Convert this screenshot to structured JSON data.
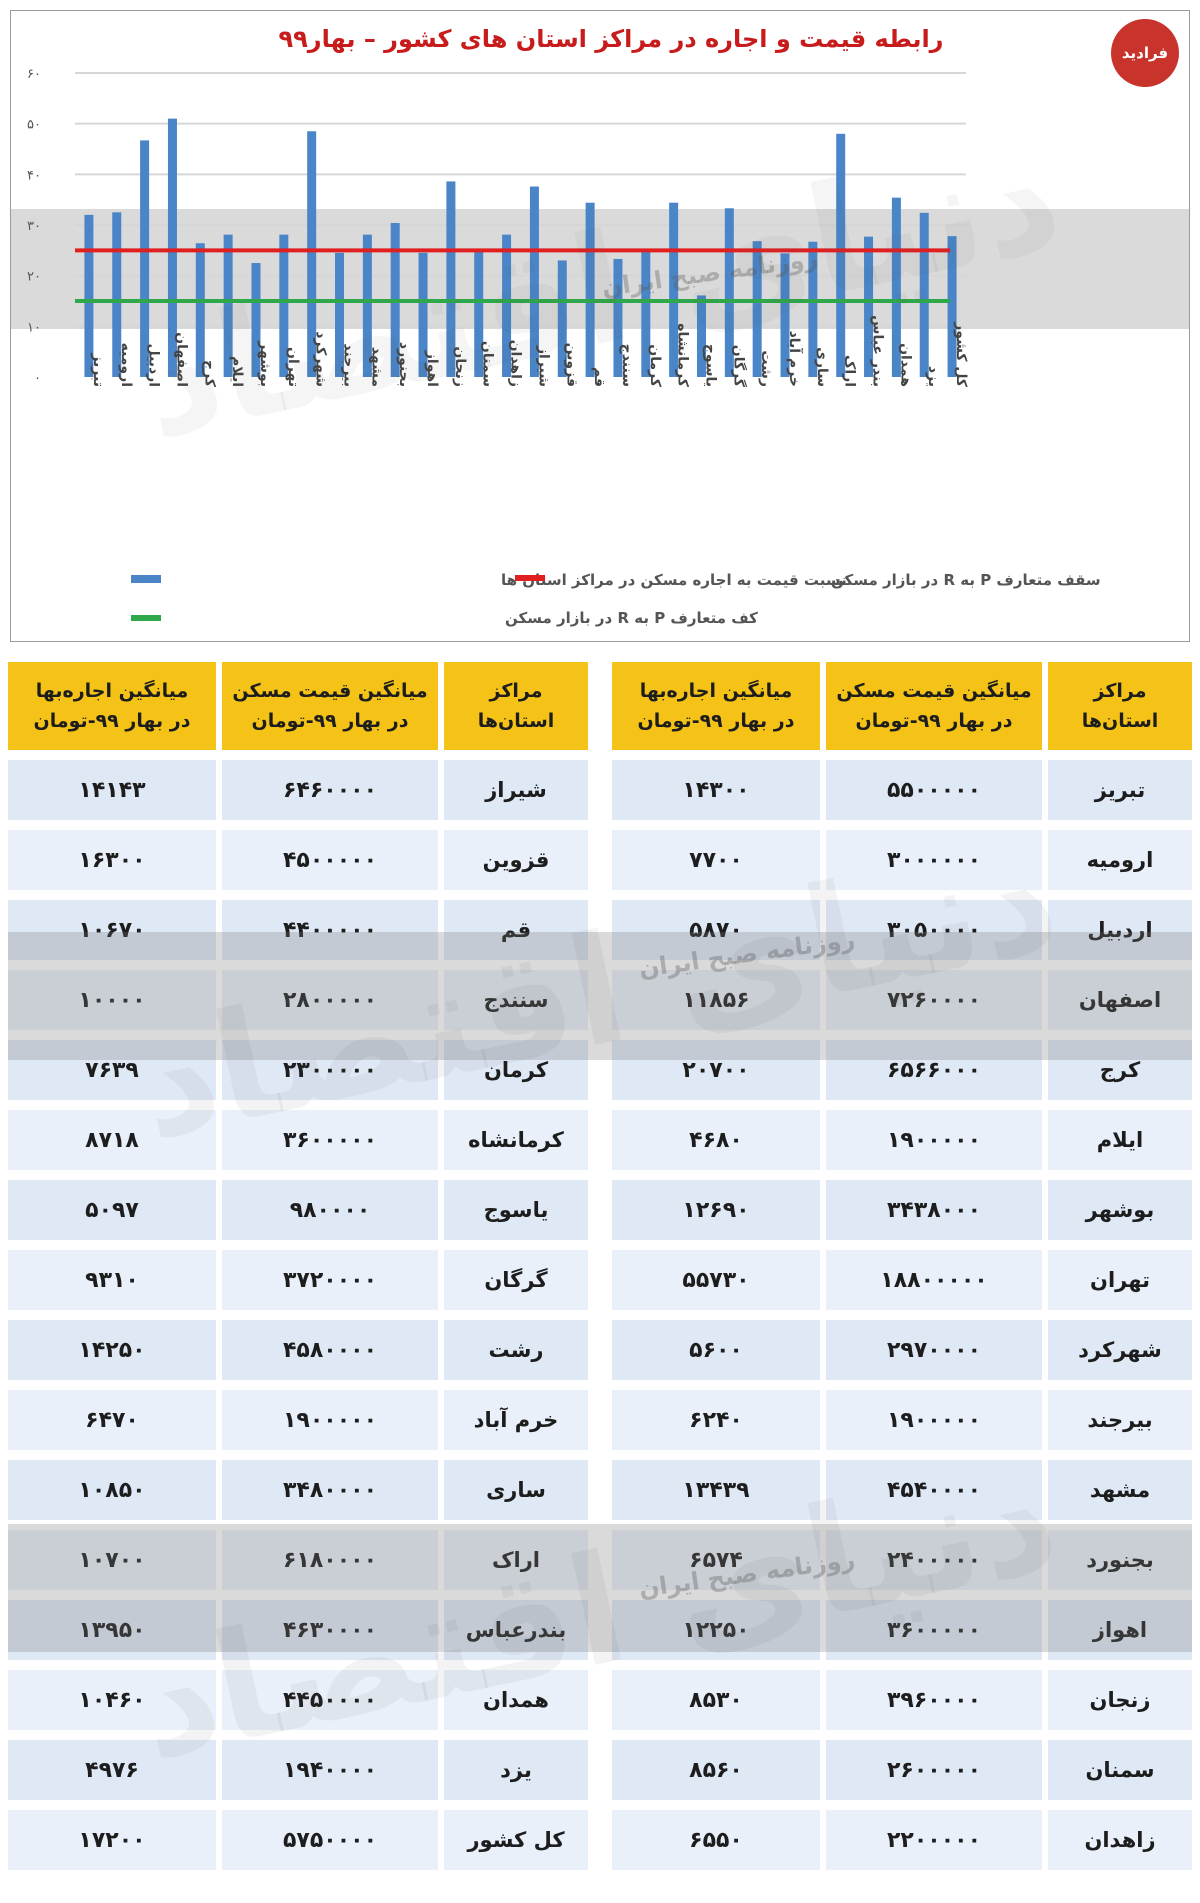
{
  "logo": {
    "text": "فرادید"
  },
  "chart_data": {
    "type": "bar",
    "title": "رابطه قیمت و اجاره در مراکز استان های کشور – بهار۹۹",
    "categories": [
      "تبریز",
      "ارومیه",
      "اردبیل",
      "اصفهان",
      "کرج",
      "ایلام",
      "بوشهر",
      "تهران",
      "شهرکرد",
      "بیرجند",
      "مشهد",
      "بجنورد",
      "اهواز",
      "زنجان",
      "سمنان",
      "زاهدان",
      "شیراز",
      "قزوین",
      "قم",
      "سنندج",
      "کرمان",
      "کرمانشاه",
      "یاسوج",
      "گرگان",
      "رشت",
      "خرم آباد",
      "ساری",
      "اراک",
      "بندر عباس",
      "همدان",
      "یزد",
      "کل کشور"
    ],
    "values": [
      32.0,
      32.5,
      46.7,
      51.0,
      26.4,
      28.1,
      22.5,
      28.1,
      48.5,
      24.5,
      28.1,
      30.4,
      24.5,
      38.6,
      25.3,
      28.1,
      37.6,
      23.0,
      34.4,
      23.3,
      24.9,
      34.4,
      16.1,
      33.3,
      26.8,
      24.4,
      26.7,
      48.0,
      27.7,
      35.4,
      32.4,
      27.8
    ],
    "series_name": "نسبت قیمت به اجاره مسکن در مراکز استان ها",
    "reference_lines": [
      {
        "name": "سقف متعارف P به R در بازار مسکن",
        "value": 25,
        "color": "#e02020"
      },
      {
        "name": "کف متعارف P به R در بازار مسکن",
        "value": 15,
        "color": "#2ea84a"
      }
    ],
    "y_ticks": [
      "۰",
      "۱۰",
      "۲۰",
      "۳۰",
      "۴۰",
      "۵۰",
      "۶۰"
    ],
    "ylim": [
      0,
      60
    ],
    "grid": true,
    "legend_position": "bottom",
    "bar_color": "#4a85c8"
  },
  "watermark": {
    "newspaper": "روزنامه صبح ایران",
    "brand": "دنیای اقتصاد"
  },
  "table": {
    "headers": {
      "city": "مراکز استان‌ها",
      "price_line1": "میانگین قیمت مسکن",
      "price_line2": "در بهار ۹۹-تومان",
      "rent_line1": "میانگین اجاره‌بها",
      "rent_line2": "در بهار ۹۹-تومان"
    },
    "right_rows": [
      {
        "city": "تبریز",
        "price": "۵۵۰۰۰۰۰",
        "rent": "۱۴۳۰۰"
      },
      {
        "city": "ارومیه",
        "price": "۳۰۰۰۰۰۰",
        "rent": "۷۷۰۰"
      },
      {
        "city": "اردبیل",
        "price": "۳۰۵۰۰۰۰",
        "rent": "۵۸۷۰"
      },
      {
        "city": "اصفهان",
        "price": "۷۲۶۰۰۰۰",
        "rent": "۱۱۸۵۶"
      },
      {
        "city": "کرج",
        "price": "۶۵۶۶۰۰۰",
        "rent": "۲۰۷۰۰"
      },
      {
        "city": "ایلام",
        "price": "۱۹۰۰۰۰۰",
        "rent": "۴۶۸۰"
      },
      {
        "city": "بوشهر",
        "price": "۳۴۳۸۰۰۰",
        "rent": "۱۲۶۹۰"
      },
      {
        "city": "تهران",
        "price": "۱۸۸۰۰۰۰۰",
        "rent": "۵۵۷۳۰"
      },
      {
        "city": "شهرکرد",
        "price": "۲۹۷۰۰۰۰",
        "rent": "۵۶۰۰"
      },
      {
        "city": "بیرجند",
        "price": "۱۹۰۰۰۰۰",
        "rent": "۶۲۴۰"
      },
      {
        "city": "مشهد",
        "price": "۴۵۴۰۰۰۰",
        "rent": "۱۳۴۳۹"
      },
      {
        "city": "بجنورد",
        "price": "۲۴۰۰۰۰۰",
        "rent": "۶۵۷۴"
      },
      {
        "city": "اهواز",
        "price": "۳۶۰۰۰۰۰",
        "rent": "۱۲۲۵۰"
      },
      {
        "city": "زنجان",
        "price": "۳۹۶۰۰۰۰",
        "rent": "۸۵۳۰"
      },
      {
        "city": "سمنان",
        "price": "۲۶۰۰۰۰۰",
        "rent": "۸۵۶۰"
      },
      {
        "city": "زاهدان",
        "price": "۲۲۰۰۰۰۰",
        "rent": "۶۵۵۰"
      }
    ],
    "left_rows": [
      {
        "city": "شیراز",
        "price": "۶۴۶۰۰۰۰",
        "rent": "۱۴۱۴۳"
      },
      {
        "city": "قزوین",
        "price": "۴۵۰۰۰۰۰",
        "rent": "۱۶۳۰۰"
      },
      {
        "city": "قم",
        "price": "۴۴۰۰۰۰۰",
        "rent": "۱۰۶۷۰"
      },
      {
        "city": "سنندج",
        "price": "۲۸۰۰۰۰۰",
        "rent": "۱۰۰۰۰"
      },
      {
        "city": "کرمان",
        "price": "۲۳۰۰۰۰۰",
        "rent": "۷۶۳۹"
      },
      {
        "city": "کرمانشاه",
        "price": "۳۶۰۰۰۰۰",
        "rent": "۸۷۱۸"
      },
      {
        "city": "یاسوج",
        "price": "۹۸۰۰۰۰",
        "rent": "۵۰۹۷"
      },
      {
        "city": "گرگان",
        "price": "۳۷۲۰۰۰۰",
        "rent": "۹۳۱۰"
      },
      {
        "city": "رشت",
        "price": "۴۵۸۰۰۰۰",
        "rent": "۱۴۲۵۰"
      },
      {
        "city": "خرم آباد",
        "price": "۱۹۰۰۰۰۰",
        "rent": "۶۴۷۰"
      },
      {
        "city": "ساری",
        "price": "۳۴۸۰۰۰۰",
        "rent": "۱۰۸۵۰"
      },
      {
        "city": "اراک",
        "price": "۶۱۸۰۰۰۰",
        "rent": "۱۰۷۰۰"
      },
      {
        "city": "بندرعباس",
        "price": "۴۶۳۰۰۰۰",
        "rent": "۱۳۹۵۰"
      },
      {
        "city": "همدان",
        "price": "۴۴۵۰۰۰۰",
        "rent": "۱۰۴۶۰"
      },
      {
        "city": "یزد",
        "price": "۱۹۴۰۰۰۰",
        "rent": "۴۹۷۶"
      },
      {
        "city": "کل کشور",
        "price": "۵۷۵۰۰۰۰",
        "rent": "۱۷۲۰۰"
      }
    ]
  }
}
